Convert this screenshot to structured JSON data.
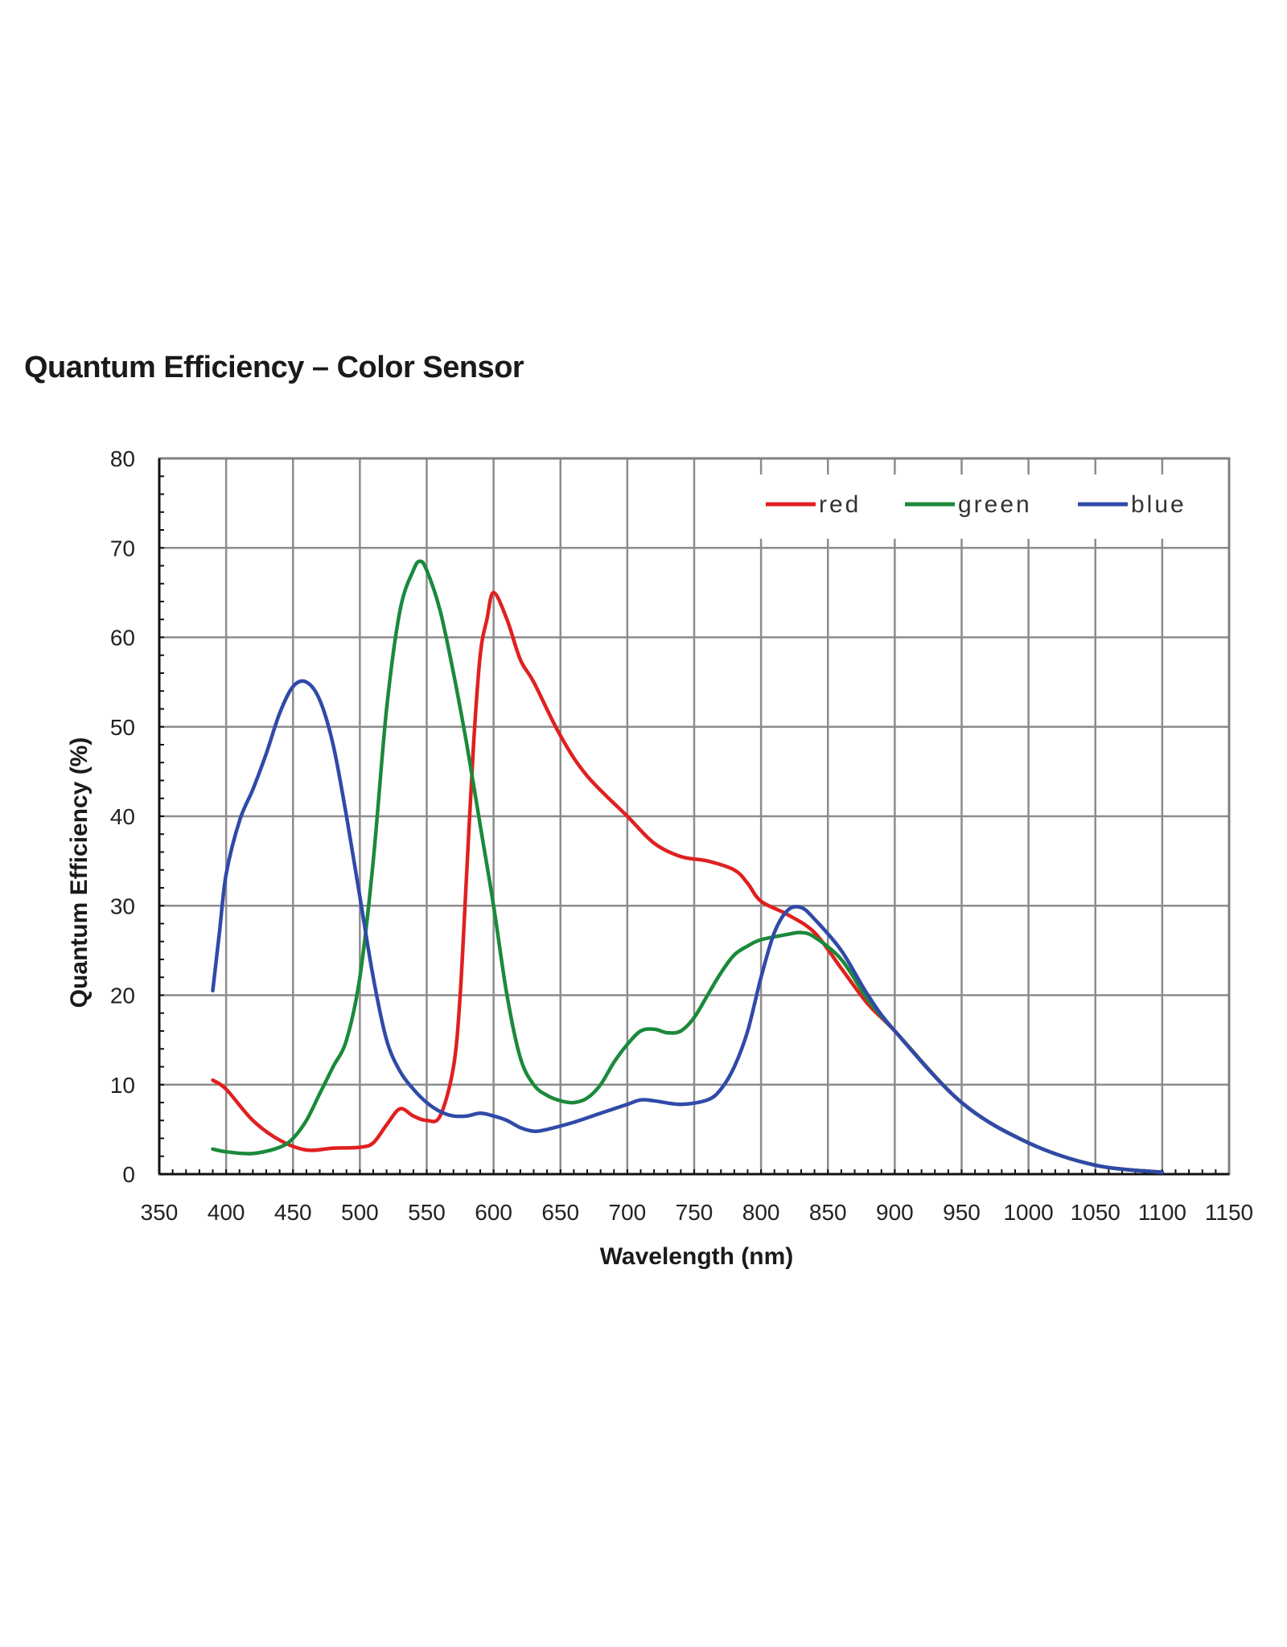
{
  "page": {
    "title": "Quantum Efficiency – Color Sensor"
  },
  "chart_data": {
    "type": "line",
    "xlabel": "Wavelength (nm)",
    "ylabel": "Quantum Efficiency  (%)",
    "xlim": [
      350,
      1150
    ],
    "ylim": [
      0,
      80
    ],
    "xticks": [
      350,
      400,
      450,
      500,
      550,
      600,
      650,
      700,
      750,
      800,
      850,
      900,
      950,
      1000,
      1050,
      1100,
      1150
    ],
    "yticks": [
      0,
      10,
      20,
      30,
      40,
      50,
      60,
      70,
      80
    ],
    "grid": true,
    "legend": "top-right",
    "series": [
      {
        "name": "red",
        "color": "#e02020",
        "x": [
          390,
          400,
          420,
          440,
          460,
          480,
          500,
          510,
          520,
          530,
          540,
          550,
          560,
          570,
          575,
          580,
          585,
          590,
          595,
          600,
          610,
          620,
          630,
          650,
          670,
          700,
          720,
          740,
          760,
          780,
          790,
          800,
          820,
          840,
          860,
          880,
          900,
          950,
          1000,
          1050,
          1100
        ],
        "y": [
          10.5,
          9.5,
          6.0,
          3.8,
          2.7,
          2.9,
          3.0,
          3.5,
          5.5,
          7.3,
          6.5,
          6.0,
          6.5,
          12.0,
          20.0,
          34.0,
          48.0,
          58.0,
          62.0,
          65.0,
          62.0,
          57.5,
          55.0,
          49.0,
          44.5,
          40.0,
          37.0,
          35.5,
          35.0,
          34.0,
          32.5,
          30.5,
          29.0,
          27.0,
          23.0,
          19.0,
          16.0,
          8.0,
          3.5,
          1.0,
          0.2
        ]
      },
      {
        "name": "green",
        "color": "#1a8a3a",
        "x": [
          390,
          400,
          420,
          440,
          450,
          460,
          470,
          480,
          490,
          500,
          510,
          520,
          530,
          540,
          545,
          550,
          560,
          570,
          580,
          590,
          600,
          610,
          620,
          630,
          640,
          650,
          660,
          670,
          680,
          690,
          700,
          710,
          720,
          730,
          740,
          750,
          760,
          770,
          780,
          790,
          800,
          820,
          830,
          840,
          860,
          880,
          900,
          950,
          1000,
          1050,
          1100
        ],
        "y": [
          2.8,
          2.5,
          2.3,
          3.0,
          4.0,
          6.0,
          9.0,
          12.0,
          15.0,
          22.0,
          35.0,
          52.0,
          63.0,
          67.5,
          68.5,
          67.5,
          63.0,
          56.0,
          48.0,
          39.0,
          30.0,
          20.0,
          13.0,
          10.0,
          8.8,
          8.2,
          8.0,
          8.5,
          10.0,
          12.5,
          14.5,
          16.0,
          16.2,
          15.8,
          16.0,
          17.5,
          20.0,
          22.5,
          24.5,
          25.5,
          26.2,
          26.8,
          27.0,
          26.5,
          24.0,
          19.5,
          16.0,
          8.0,
          3.5,
          1.0,
          0.2
        ]
      },
      {
        "name": "blue",
        "color": "#2f4aa8",
        "x": [
          390,
          395,
          400,
          410,
          420,
          430,
          440,
          450,
          460,
          470,
          480,
          490,
          500,
          510,
          520,
          530,
          540,
          550,
          560,
          570,
          580,
          590,
          600,
          610,
          620,
          630,
          640,
          660,
          680,
          700,
          710,
          720,
          740,
          760,
          770,
          780,
          790,
          800,
          810,
          820,
          830,
          840,
          860,
          880,
          900,
          950,
          1000,
          1050,
          1100
        ],
        "y": [
          20.5,
          27.0,
          33.5,
          39.5,
          43.0,
          47.0,
          51.5,
          54.5,
          55.0,
          53.0,
          48.0,
          40.0,
          31.0,
          22.0,
          15.0,
          11.5,
          9.5,
          8.0,
          7.0,
          6.5,
          6.5,
          6.8,
          6.5,
          6.0,
          5.2,
          4.8,
          5.0,
          5.8,
          6.8,
          7.8,
          8.3,
          8.2,
          7.8,
          8.3,
          9.5,
          12.0,
          16.0,
          22.0,
          27.0,
          29.5,
          29.8,
          28.5,
          25.0,
          20.0,
          16.0,
          8.0,
          3.5,
          1.0,
          0.2
        ]
      }
    ]
  }
}
